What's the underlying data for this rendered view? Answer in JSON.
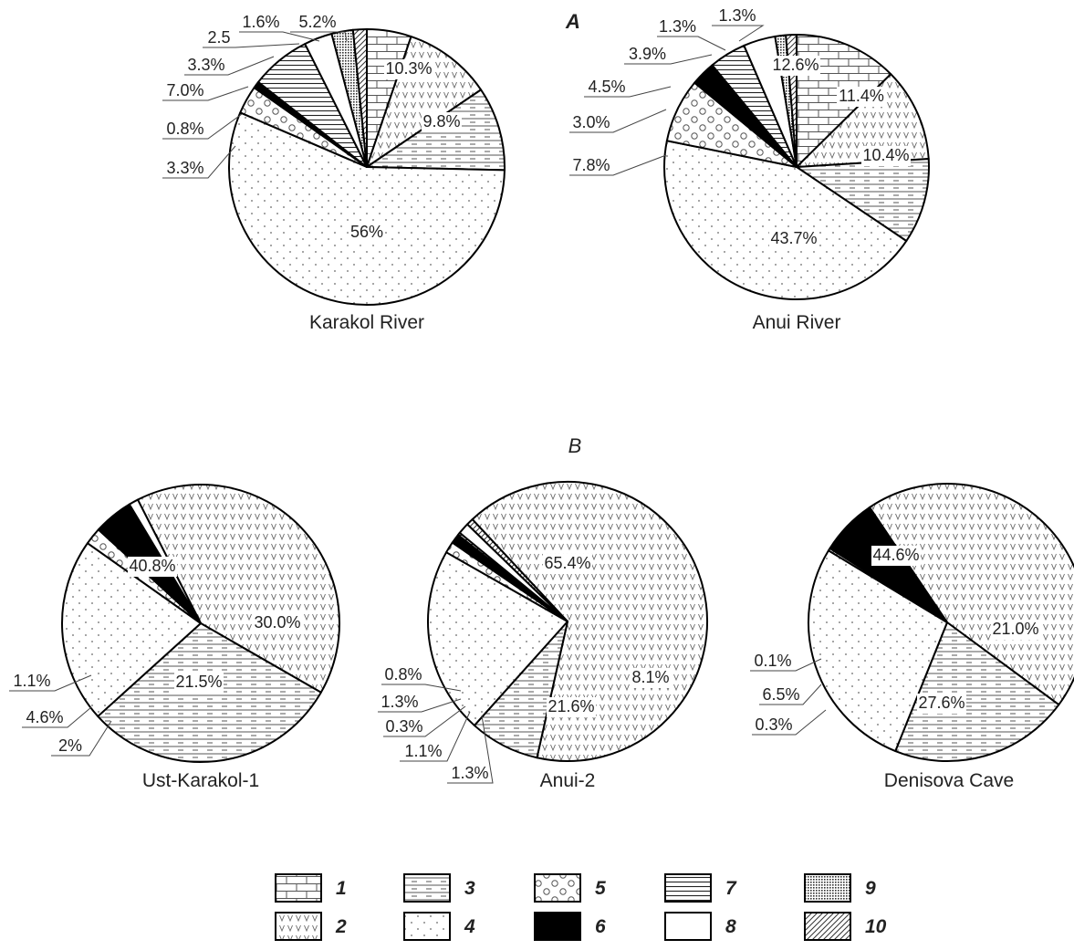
{
  "panels": [
    {
      "label": "A",
      "bold": true
    },
    {
      "label": "B",
      "bold": false
    }
  ],
  "legend": [
    {
      "key": "1",
      "pattern": "brick"
    },
    {
      "key": "2",
      "pattern": "vees"
    },
    {
      "key": "3",
      "pattern": "dashes"
    },
    {
      "key": "4",
      "pattern": "dots"
    },
    {
      "key": "5",
      "pattern": "circles"
    },
    {
      "key": "6",
      "pattern": "solid-black"
    },
    {
      "key": "7",
      "pattern": "hlines"
    },
    {
      "key": "8",
      "pattern": "white"
    },
    {
      "key": "9",
      "pattern": "stipple"
    },
    {
      "key": "10",
      "pattern": "diagonal"
    }
  ],
  "chart_data": [
    {
      "type": "pie",
      "title": "Karakol River",
      "panel": "A",
      "slices": [
        {
          "category": "1",
          "value": 5.2,
          "label": "5.2%"
        },
        {
          "category": "2",
          "value": 10.3,
          "label": "10.3%"
        },
        {
          "category": "3",
          "value": 9.8,
          "label": "9.8%"
        },
        {
          "category": "4",
          "value": 56,
          "label": "56%"
        },
        {
          "category": "5",
          "value": 3.3,
          "label": "3.3%"
        },
        {
          "category": "6",
          "value": 0.8,
          "label": "0.8%"
        },
        {
          "category": "7",
          "value": 7.0,
          "label": "7.0%"
        },
        {
          "category": "8",
          "value": 3.3,
          "label": "3.3%"
        },
        {
          "category": "9",
          "value": 2.5,
          "label": "2.5"
        },
        {
          "category": "10",
          "value": 1.6,
          "label": "1.6%"
        }
      ]
    },
    {
      "type": "pie",
      "title": "Anui River",
      "panel": "A",
      "slices": [
        {
          "category": "1",
          "value": 12.6,
          "label": "12.6%"
        },
        {
          "category": "2",
          "value": 11.4,
          "label": "11.4%"
        },
        {
          "category": "3",
          "value": 10.4,
          "label": "10.4%"
        },
        {
          "category": "4",
          "value": 43.7,
          "label": "43.7%"
        },
        {
          "category": "5",
          "value": 7.8,
          "label": "7.8%"
        },
        {
          "category": "6",
          "value": 3.0,
          "label": "3.0%"
        },
        {
          "category": "7",
          "value": 4.5,
          "label": "4.5%"
        },
        {
          "category": "8",
          "value": 3.9,
          "label": "3.9%"
        },
        {
          "category": "9",
          "value": 1.3,
          "label": "1.3%"
        },
        {
          "category": "10",
          "value": 1.3,
          "label": "1.3%"
        }
      ]
    },
    {
      "type": "pie",
      "title": "Ust-Karakol-1",
      "panel": "B",
      "slices": [
        {
          "category": "2",
          "value": 40.8,
          "label": "40.8%"
        },
        {
          "category": "3",
          "value": 30.0,
          "label": "30.0%"
        },
        {
          "category": "4",
          "value": 21.5,
          "label": "21.5%"
        },
        {
          "category": "5",
          "value": 2,
          "label": "2%"
        },
        {
          "category": "6",
          "value": 4.6,
          "label": "4.6%"
        },
        {
          "category": "8",
          "value": 1.1,
          "label": "1.1%"
        }
      ]
    },
    {
      "type": "pie",
      "title": "Anui-2",
      "panel": "B",
      "slices": [
        {
          "category": "2",
          "value": 65.4,
          "label": "65.4%"
        },
        {
          "category": "3",
          "value": 8.1,
          "label": "8.1%"
        },
        {
          "category": "4",
          "value": 21.6,
          "label": "21.6%"
        },
        {
          "category": "5",
          "value": 1.3,
          "label": "1.3%"
        },
        {
          "category": "6",
          "value": 1.1,
          "label": "1.1%"
        },
        {
          "category": "7",
          "value": 0.3,
          "label": "0.3%"
        },
        {
          "category": "8",
          "value": 1.3,
          "label": "1.3%"
        },
        {
          "category": "10",
          "value": 0.8,
          "label": "0.8%"
        }
      ]
    },
    {
      "type": "pie",
      "title": "Denisova Cave",
      "panel": "B",
      "slices": [
        {
          "category": "2",
          "value": 44.6,
          "label": "44.6%"
        },
        {
          "category": "3",
          "value": 21.0,
          "label": "21.0%"
        },
        {
          "category": "4",
          "value": 27.6,
          "label": "27.6%"
        },
        {
          "category": "5",
          "value": 0.3,
          "label": "0.3%"
        },
        {
          "category": "6",
          "value": 6.5,
          "label": "6.5%"
        },
        {
          "category": "8",
          "value": 0.1,
          "label": "0.1%"
        }
      ]
    }
  ]
}
